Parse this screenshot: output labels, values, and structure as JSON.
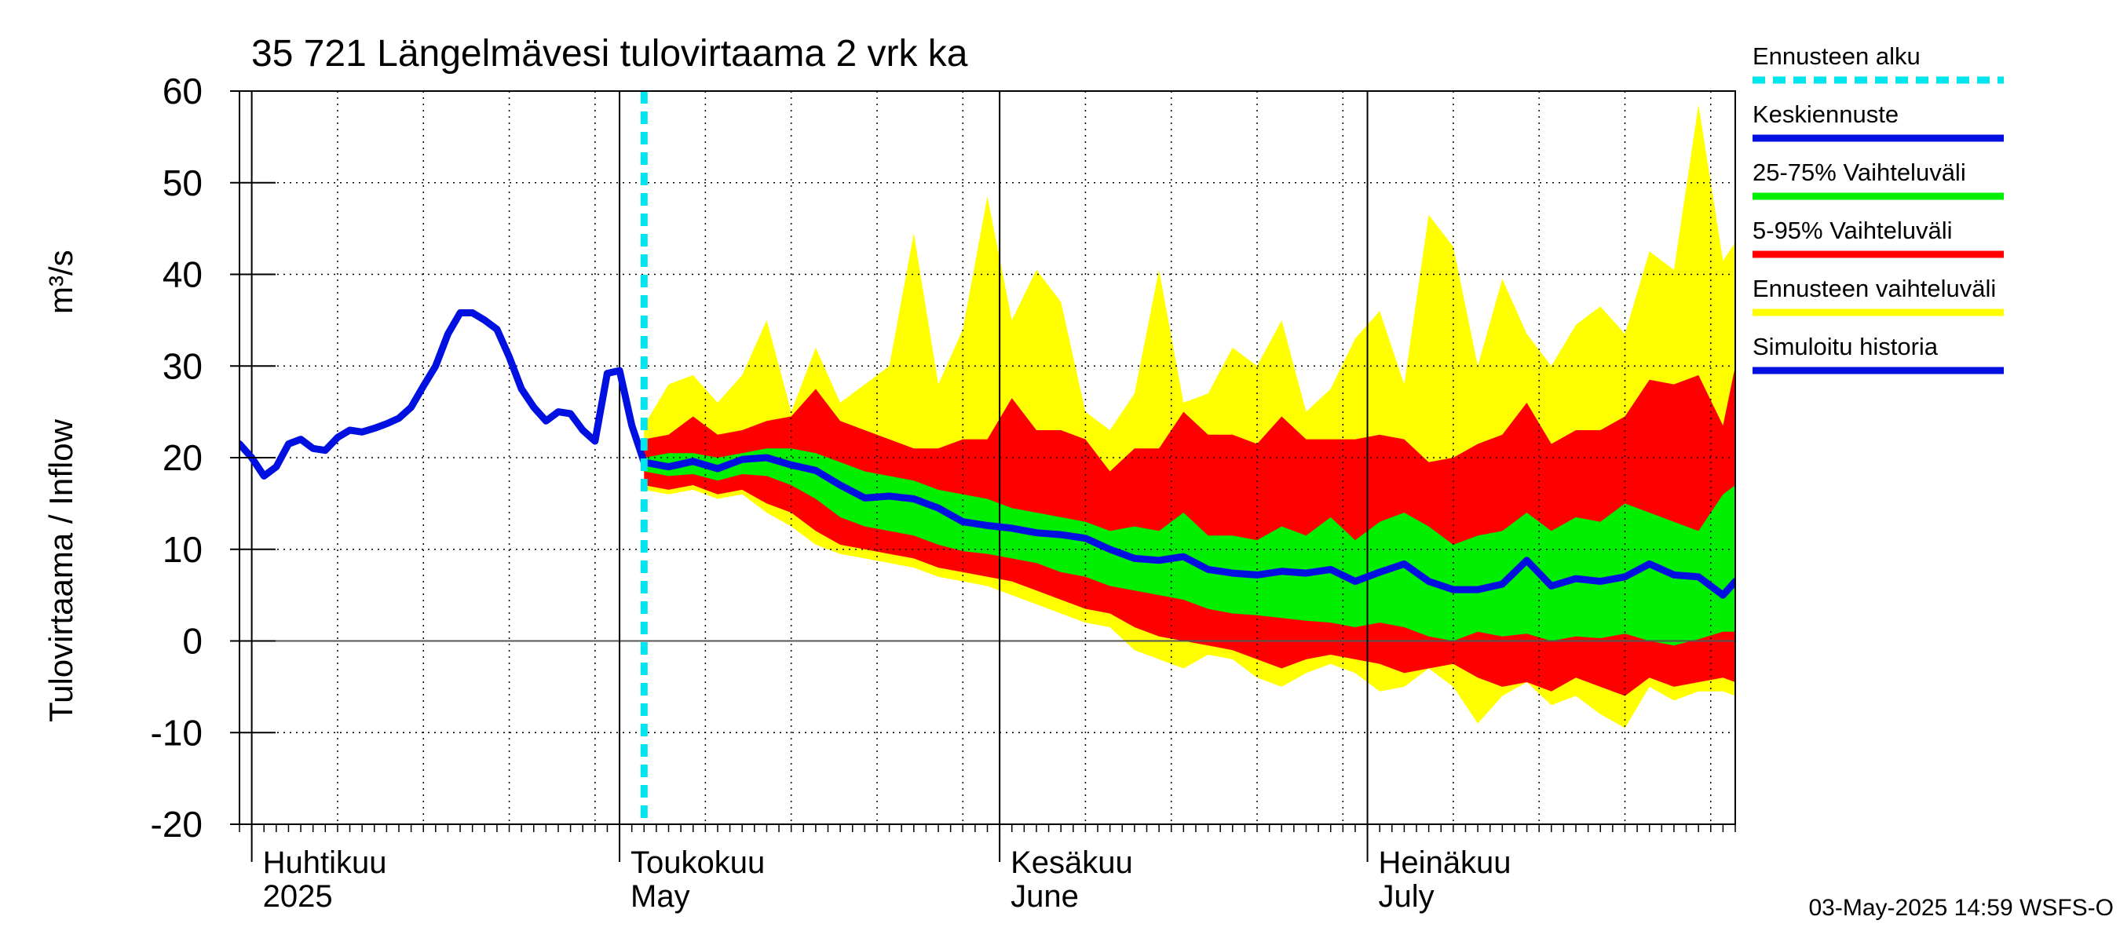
{
  "chart_data": {
    "type": "area",
    "title": "35 721 Längelmävesi tulovirtaama 2 vrk ka",
    "ylabel_fi": "Tulovirtaama / Inflow",
    "ylabel_unit": "m³/s",
    "ylim": [
      -20,
      60
    ],
    "yticks": [
      -20,
      -10,
      0,
      10,
      20,
      30,
      40,
      50,
      60
    ],
    "grid": true,
    "legend_position": "right",
    "x_axis": {
      "start_date": "2025-03-31",
      "end_date": "2025-07-31",
      "months": [
        {
          "fi": "Huhtikuu",
          "en": "2025",
          "date": "2025-04-01"
        },
        {
          "fi": "Toukokuu",
          "en": "May",
          "date": "2025-05-01"
        },
        {
          "fi": "Kesäkuu",
          "en": "June",
          "date": "2025-06-01"
        },
        {
          "fi": "Heinäkuu",
          "en": "July",
          "date": "2025-07-01"
        }
      ]
    },
    "forecast_start": "2025-05-03",
    "colors": {
      "forecast_start": "#00e5ee",
      "median": "#0010e0",
      "p25_75": "#00ee00",
      "p5_95": "#ff0000",
      "envelope": "#ffff00",
      "history": "#0010e0",
      "grid": "#000000"
    },
    "legend": [
      {
        "key": "forecast_start",
        "label": "Ennusteen alku",
        "style": "dashed"
      },
      {
        "key": "median",
        "label": "Keskiennuste",
        "style": "solid"
      },
      {
        "key": "p25_75",
        "label": "25-75% Vaihteluväli",
        "style": "solid"
      },
      {
        "key": "p5_95",
        "label": "5-95% Vaihteluväli",
        "style": "solid"
      },
      {
        "key": "envelope",
        "label": "Ennusteen vaihteluväli",
        "style": "solid"
      },
      {
        "key": "history",
        "label": "Simuloitu historia",
        "style": "solid"
      }
    ],
    "history": [
      [
        "2025-03-31",
        21.5
      ],
      [
        "2025-04-01",
        20.0
      ],
      [
        "2025-04-02",
        18.0
      ],
      [
        "2025-04-03",
        19.0
      ],
      [
        "2025-04-04",
        21.5
      ],
      [
        "2025-04-05",
        22.0
      ],
      [
        "2025-04-06",
        21.0
      ],
      [
        "2025-04-07",
        20.8
      ],
      [
        "2025-04-08",
        22.2
      ],
      [
        "2025-04-09",
        23.0
      ],
      [
        "2025-04-10",
        22.8
      ],
      [
        "2025-04-11",
        23.2
      ],
      [
        "2025-04-12",
        23.7
      ],
      [
        "2025-04-13",
        24.3
      ],
      [
        "2025-04-14",
        25.5
      ],
      [
        "2025-04-15",
        27.8
      ],
      [
        "2025-04-16",
        30.0
      ],
      [
        "2025-04-17",
        33.5
      ],
      [
        "2025-04-18",
        35.8
      ],
      [
        "2025-04-19",
        35.8
      ],
      [
        "2025-04-20",
        35.0
      ],
      [
        "2025-04-21",
        34.0
      ],
      [
        "2025-04-22",
        31.0
      ],
      [
        "2025-04-23",
        27.5
      ],
      [
        "2025-04-24",
        25.5
      ],
      [
        "2025-04-25",
        24.0
      ],
      [
        "2025-04-26",
        25.0
      ],
      [
        "2025-04-27",
        24.8
      ],
      [
        "2025-04-28",
        23.0
      ],
      [
        "2025-04-29",
        21.8
      ],
      [
        "2025-04-30",
        29.2
      ],
      [
        "2025-05-01",
        29.5
      ],
      [
        "2025-05-02",
        23.5
      ],
      [
        "2025-05-03",
        19.5
      ]
    ],
    "forecast": {
      "dates": [
        "2025-05-03",
        "2025-05-05",
        "2025-05-07",
        "2025-05-09",
        "2025-05-11",
        "2025-05-13",
        "2025-05-15",
        "2025-05-17",
        "2025-05-19",
        "2025-05-21",
        "2025-05-23",
        "2025-05-25",
        "2025-05-27",
        "2025-05-29",
        "2025-05-31",
        "2025-06-02",
        "2025-06-04",
        "2025-06-06",
        "2025-06-08",
        "2025-06-10",
        "2025-06-12",
        "2025-06-14",
        "2025-06-16",
        "2025-06-18",
        "2025-06-20",
        "2025-06-22",
        "2025-06-24",
        "2025-06-26",
        "2025-06-28",
        "2025-06-30",
        "2025-07-02",
        "2025-07-04",
        "2025-07-06",
        "2025-07-08",
        "2025-07-10",
        "2025-07-12",
        "2025-07-14",
        "2025-07-16",
        "2025-07-18",
        "2025-07-20",
        "2025-07-22",
        "2025-07-24",
        "2025-07-26",
        "2025-07-28",
        "2025-07-30",
        "2025-07-31"
      ],
      "median": [
        19.5,
        19.0,
        19.6,
        18.8,
        19.8,
        20.0,
        19.2,
        18.6,
        17.0,
        15.6,
        15.8,
        15.5,
        14.5,
        13.0,
        12.6,
        12.3,
        11.8,
        11.6,
        11.2,
        10.0,
        9.0,
        8.8,
        9.2,
        7.8,
        7.4,
        7.2,
        7.6,
        7.4,
        7.8,
        6.5,
        7.5,
        8.4,
        6.5,
        5.6,
        5.6,
        6.2,
        8.8,
        6.0,
        6.8,
        6.5,
        7.0,
        8.4,
        7.2,
        7.0,
        5.0,
        6.5
      ],
      "p25": [
        18.5,
        18.0,
        18.2,
        17.5,
        18.2,
        18.0,
        17.0,
        15.5,
        13.5,
        12.5,
        12.0,
        11.5,
        10.5,
        9.8,
        9.5,
        9.0,
        8.5,
        7.5,
        7.0,
        6.0,
        5.5,
        5.0,
        4.5,
        3.5,
        3.0,
        2.8,
        2.5,
        2.2,
        2.0,
        1.5,
        2.0,
        1.5,
        0.5,
        0.0,
        1.0,
        0.5,
        0.8,
        0.0,
        0.5,
        0.3,
        0.8,
        0.0,
        -0.5,
        0.2,
        1.0,
        1.0
      ],
      "p75": [
        20.0,
        20.5,
        20.5,
        20.0,
        20.5,
        21.0,
        21.0,
        20.5,
        19.5,
        18.5,
        18.0,
        17.5,
        16.5,
        16.0,
        15.5,
        14.5,
        14.0,
        13.5,
        13.0,
        12.0,
        12.5,
        12.0,
        14.0,
        11.5,
        11.5,
        11.0,
        12.5,
        11.5,
        13.5,
        11.0,
        13.0,
        14.0,
        12.5,
        10.5,
        11.5,
        12.0,
        14.0,
        12.0,
        13.5,
        13.0,
        15.0,
        14.0,
        13.0,
        12.0,
        16.0,
        17.0
      ],
      "p5": [
        17.0,
        16.5,
        17.0,
        16.0,
        16.5,
        15.0,
        14.0,
        12.0,
        10.5,
        10.0,
        9.5,
        9.0,
        8.0,
        7.5,
        7.0,
        6.5,
        5.5,
        4.5,
        3.5,
        3.0,
        1.5,
        0.5,
        0.0,
        -0.5,
        -1.0,
        -2.0,
        -3.0,
        -2.0,
        -1.5,
        -2.0,
        -2.5,
        -3.5,
        -3.0,
        -2.5,
        -4.0,
        -5.0,
        -4.5,
        -5.5,
        -4.0,
        -5.0,
        -6.0,
        -4.0,
        -5.0,
        -4.5,
        -4.0,
        -4.5
      ],
      "p95": [
        22.0,
        22.5,
        24.5,
        22.5,
        23.0,
        24.0,
        24.5,
        27.5,
        24.0,
        23.0,
        22.0,
        21.0,
        21.0,
        22.0,
        22.0,
        26.5,
        23.0,
        23.0,
        22.0,
        18.5,
        21.0,
        21.0,
        25.0,
        22.5,
        22.5,
        21.5,
        24.5,
        22.0,
        22.0,
        22.0,
        22.5,
        22.0,
        19.5,
        20.0,
        21.5,
        22.5,
        26.0,
        21.5,
        23.0,
        23.0,
        24.5,
        28.5,
        28.0,
        29.0,
        23.5,
        30.0
      ],
      "min": [
        16.5,
        16.0,
        16.5,
        15.5,
        16.0,
        14.0,
        12.5,
        10.5,
        9.5,
        9.0,
        8.5,
        8.0,
        7.0,
        6.5,
        6.0,
        5.0,
        4.0,
        3.0,
        2.0,
        1.5,
        -1.0,
        -2.0,
        -3.0,
        -1.5,
        -2.0,
        -4.0,
        -5.0,
        -3.5,
        -2.5,
        -3.5,
        -5.5,
        -5.0,
        -3.0,
        -5.0,
        -9.0,
        -6.0,
        -4.5,
        -7.0,
        -6.0,
        -8.0,
        -9.5,
        -5.0,
        -6.5,
        -5.5,
        -5.5,
        -6.0
      ],
      "max": [
        23.5,
        28.0,
        29.0,
        26.0,
        29.0,
        35.0,
        25.0,
        32.0,
        26.0,
        28.0,
        30.0,
        44.5,
        28.0,
        34.0,
        48.5,
        35.0,
        40.5,
        37.0,
        25.0,
        23.0,
        27.0,
        40.5,
        26.0,
        27.0,
        32.0,
        30.0,
        35.0,
        25.0,
        27.5,
        33.0,
        36.0,
        28.0,
        46.5,
        43.0,
        30.0,
        39.5,
        33.5,
        30.0,
        34.5,
        36.5,
        33.5,
        42.5,
        40.5,
        58.5,
        41.5,
        43.5
      ]
    },
    "footer": "03-May-2025 14:59 WSFS-O"
  }
}
